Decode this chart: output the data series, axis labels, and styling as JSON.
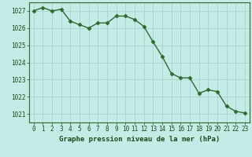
{
  "x": [
    0,
    1,
    2,
    3,
    4,
    5,
    6,
    7,
    8,
    9,
    10,
    11,
    12,
    13,
    14,
    15,
    16,
    17,
    18,
    19,
    20,
    21,
    22,
    23
  ],
  "y": [
    1027.0,
    1027.2,
    1027.0,
    1027.1,
    1026.4,
    1026.2,
    1026.0,
    1026.3,
    1026.3,
    1026.7,
    1026.7,
    1026.5,
    1026.1,
    1025.2,
    1024.35,
    1023.35,
    1023.1,
    1023.1,
    1022.2,
    1022.4,
    1022.3,
    1021.45,
    1021.15,
    1021.05
  ],
  "line_color": "#2d6b2d",
  "marker": "D",
  "marker_size": 2.5,
  "bg_color": "#c5ebe6",
  "grid_color": "#a8d4ce",
  "xlabel": "Graphe pression niveau de la mer (hPa)",
  "tick_label_color": "#1a4a1a",
  "ylim": [
    1020.5,
    1027.5
  ],
  "yticks": [
    1021,
    1022,
    1023,
    1024,
    1025,
    1026,
    1027
  ],
  "xticks": [
    0,
    1,
    2,
    3,
    4,
    5,
    6,
    7,
    8,
    9,
    10,
    11,
    12,
    13,
    14,
    15,
    16,
    17,
    18,
    19,
    20,
    21,
    22,
    23
  ],
  "spine_color": "#2d6b2d",
  "tick_fontsize": 5.5,
  "xlabel_fontsize": 6.5,
  "xlabel_color": "#1a4a1a"
}
